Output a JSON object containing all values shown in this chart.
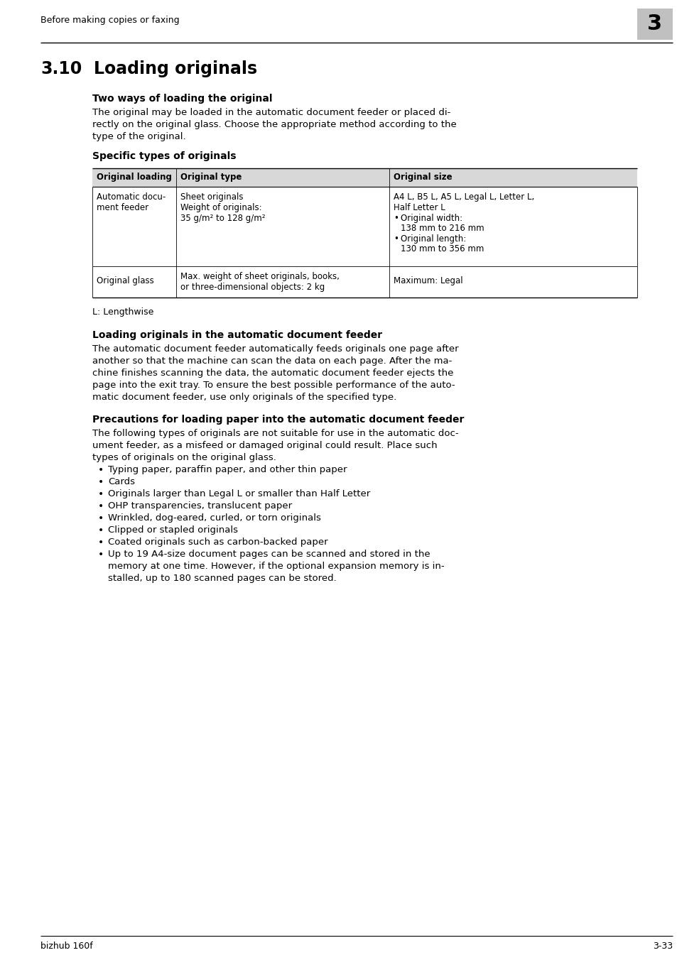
{
  "page_bg": "#ffffff",
  "header_text": "Before making copies or faxing",
  "header_chapter": "3",
  "header_chapter_bg": "#c8c8c8",
  "section_number": "3.10",
  "section_title": "Loading originals",
  "subsection1_title": "Two ways of loading the original",
  "body1_lines": [
    "The original may be loaded in the automatic document feeder or placed di-",
    "rectly on the original glass. Choose the appropriate method according to the",
    "type of the original."
  ],
  "subsection2_title": "Specific types of originals",
  "table_header_bg": "#d8d8d8",
  "table_col1_header": "Original loading",
  "table_col2_header": "Original type",
  "table_col3_header": "Original size",
  "table_row1_col1_lines": [
    "Automatic docu-",
    "ment feeder"
  ],
  "table_row1_col2_line1": "Sheet originals",
  "table_row1_col2_line2": "Weight of originals:",
  "table_row1_col2_line3": "35 g/m² to 128 g/m²",
  "table_row1_col3_line1": "A4 L, B5 L, A5 L, Legal L, Letter L,",
  "table_row1_col3_line2": "Half Letter L",
  "table_row1_col3_bullet1_label": "Original width:",
  "table_row1_col3_bullet1_val": "138 mm to 216 mm",
  "table_row1_col3_bullet2_label": "Original length:",
  "table_row1_col3_bullet2_val": "130 mm to 356 mm",
  "table_row2_col1": "Original glass",
  "table_row2_col2_lines": [
    "Max. weight of sheet originals, books,",
    "or three-dimensional objects: 2 kg"
  ],
  "table_row2_col3": "Maximum: Legal",
  "table_note": "L: Lengthwise",
  "subsection3_title": "Loading originals in the automatic document feeder",
  "body3_lines": [
    "The automatic document feeder automatically feeds originals one page after",
    "another so that the machine can scan the data on each page. After the ma-",
    "chine finishes scanning the data, the automatic document feeder ejects the",
    "page into the exit tray. To ensure the best possible performance of the auto-",
    "matic document feeder, use only originals of the specified type."
  ],
  "subsection4_title": "Precautions for loading paper into the automatic document feeder",
  "body4_lines": [
    "The following types of originals are not suitable for use in the automatic doc-",
    "ument feeder, as a misfeed or damaged original could result. Place such",
    "types of originals on the original glass."
  ],
  "bullets": [
    [
      "Typing paper, paraffin paper, and other thin paper"
    ],
    [
      "Cards"
    ],
    [
      "Originals larger than Legal L or smaller than Half Letter"
    ],
    [
      "OHP transparencies, translucent paper"
    ],
    [
      "Wrinkled, dog-eared, curled, or torn originals"
    ],
    [
      "Clipped or stapled originals"
    ],
    [
      "Coated originals such as carbon-backed paper"
    ],
    [
      "Up to 19 A4-size document pages can be scanned and stored in the",
      "memory at one time. However, if the optional expansion memory is in-",
      "stalled, up to 180 scanned pages can be stored."
    ]
  ],
  "footer_left": "bizhub 160f",
  "footer_right": "3-33"
}
